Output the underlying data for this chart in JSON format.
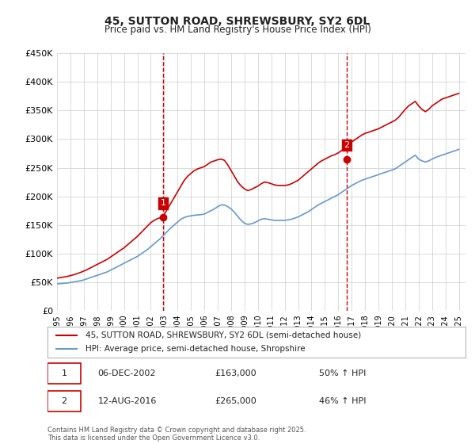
{
  "title1": "45, SUTTON ROAD, SHREWSBURY, SY2 6DL",
  "title2": "Price paid vs. HM Land Registry's House Price Index (HPI)",
  "ylabel": "",
  "ylim": [
    0,
    450000
  ],
  "yticks": [
    0,
    50000,
    100000,
    150000,
    200000,
    250000,
    300000,
    350000,
    400000,
    450000
  ],
  "ytick_labels": [
    "£0",
    "£50K",
    "£100K",
    "£150K",
    "£200K",
    "£250K",
    "£300K",
    "£350K",
    "£400K",
    "£450K"
  ],
  "xlim_start": 1995.0,
  "xlim_end": 2025.5,
  "background_color": "#ffffff",
  "grid_color": "#cccccc",
  "line1_color": "#cc0000",
  "line2_color": "#6699cc",
  "marker1_color": "#cc0000",
  "marker2_color": "#cc0000",
  "vline_color": "#cc0000",
  "vline_style": "--",
  "purchase1_x": 2002.92,
  "purchase1_y": 163000,
  "purchase1_label": "1",
  "purchase2_x": 2016.62,
  "purchase2_y": 265000,
  "purchase2_label": "2",
  "legend_line1": "45, SUTTON ROAD, SHREWSBURY, SY2 6DL (semi-detached house)",
  "legend_line2": "HPI: Average price, semi-detached house, Shropshire",
  "annotation1_date": "06-DEC-2002",
  "annotation1_price": "£163,000",
  "annotation1_hpi": "50% ↑ HPI",
  "annotation2_date": "12-AUG-2016",
  "annotation2_price": "£265,000",
  "annotation2_hpi": "46% ↑ HPI",
  "footer": "Contains HM Land Registry data © Crown copyright and database right 2025.\nThis data is licensed under the Open Government Licence v3.0.",
  "hpi_line": {
    "years": [
      1995,
      1995.25,
      1995.5,
      1995.75,
      1996,
      1996.25,
      1996.5,
      1996.75,
      1997,
      1997.25,
      1997.5,
      1997.75,
      1998,
      1998.25,
      1998.5,
      1998.75,
      1999,
      1999.25,
      1999.5,
      1999.75,
      2000,
      2000.25,
      2000.5,
      2000.75,
      2001,
      2001.25,
      2001.5,
      2001.75,
      2002,
      2002.25,
      2002.5,
      2002.75,
      2003,
      2003.25,
      2003.5,
      2003.75,
      2004,
      2004.25,
      2004.5,
      2004.75,
      2005,
      2005.25,
      2005.5,
      2005.75,
      2006,
      2006.25,
      2006.5,
      2006.75,
      2007,
      2007.25,
      2007.5,
      2007.75,
      2008,
      2008.25,
      2008.5,
      2008.75,
      2009,
      2009.25,
      2009.5,
      2009.75,
      2010,
      2010.25,
      2010.5,
      2010.75,
      2011,
      2011.25,
      2011.5,
      2011.75,
      2012,
      2012.25,
      2012.5,
      2012.75,
      2013,
      2013.25,
      2013.5,
      2013.75,
      2014,
      2014.25,
      2014.5,
      2014.75,
      2015,
      2015.25,
      2015.5,
      2015.75,
      2016,
      2016.25,
      2016.5,
      2016.75,
      2017,
      2017.25,
      2017.5,
      2017.75,
      2018,
      2018.25,
      2018.5,
      2018.75,
      2019,
      2019.25,
      2019.5,
      2019.75,
      2020,
      2020.25,
      2020.5,
      2020.75,
      2021,
      2021.25,
      2021.5,
      2021.75,
      2022,
      2022.25,
      2022.5,
      2022.75,
      2023,
      2023.25,
      2023.5,
      2023.75,
      2024,
      2024.25,
      2024.5,
      2024.75,
      2025
    ],
    "values": [
      47000,
      47500,
      48000,
      48500,
      49500,
      50500,
      51500,
      52500,
      54000,
      56000,
      58000,
      60000,
      62000,
      64000,
      66000,
      68000,
      71000,
      74000,
      77000,
      80000,
      83000,
      86000,
      89000,
      92000,
      95000,
      99000,
      103000,
      107000,
      112000,
      117000,
      122000,
      127000,
      133000,
      139000,
      145000,
      150000,
      155000,
      160000,
      163000,
      165000,
      166000,
      167000,
      167500,
      168000,
      169000,
      172000,
      175000,
      178000,
      182000,
      185000,
      185000,
      182000,
      178000,
      172000,
      165000,
      158000,
      153000,
      151000,
      152000,
      154000,
      157000,
      160000,
      161000,
      160000,
      159000,
      158000,
      158000,
      158000,
      158000,
      159000,
      160000,
      162000,
      164000,
      167000,
      170000,
      173000,
      177000,
      181000,
      185000,
      188000,
      191000,
      194000,
      197000,
      200000,
      203000,
      207000,
      211000,
      215000,
      219000,
      222000,
      225000,
      228000,
      230000,
      232000,
      234000,
      236000,
      238000,
      240000,
      242000,
      244000,
      246000,
      248000,
      252000,
      256000,
      260000,
      264000,
      268000,
      272000,
      265000,
      262000,
      260000,
      262000,
      265000,
      268000,
      270000,
      272000,
      274000,
      276000,
      278000,
      280000,
      282000
    ]
  },
  "price_line": {
    "years": [
      1995,
      1995.25,
      1995.5,
      1995.75,
      1996,
      1996.25,
      1996.5,
      1996.75,
      1997,
      1997.25,
      1997.5,
      1997.75,
      1998,
      1998.25,
      1998.5,
      1998.75,
      1999,
      1999.25,
      1999.5,
      1999.75,
      2000,
      2000.25,
      2000.5,
      2000.75,
      2001,
      2001.25,
      2001.5,
      2001.75,
      2002,
      2002.25,
      2002.5,
      2002.75,
      2003,
      2003.25,
      2003.5,
      2003.75,
      2004,
      2004.25,
      2004.5,
      2004.75,
      2005,
      2005.25,
      2005.5,
      2005.75,
      2006,
      2006.25,
      2006.5,
      2006.75,
      2007,
      2007.25,
      2007.5,
      2007.75,
      2008,
      2008.25,
      2008.5,
      2008.75,
      2009,
      2009.25,
      2009.5,
      2009.75,
      2010,
      2010.25,
      2010.5,
      2010.75,
      2011,
      2011.25,
      2011.5,
      2011.75,
      2012,
      2012.25,
      2012.5,
      2012.75,
      2013,
      2013.25,
      2013.5,
      2013.75,
      2014,
      2014.25,
      2014.5,
      2014.75,
      2015,
      2015.25,
      2015.5,
      2015.75,
      2016,
      2016.25,
      2016.5,
      2016.75,
      2017,
      2017.25,
      2017.5,
      2017.75,
      2018,
      2018.25,
      2018.5,
      2018.75,
      2019,
      2019.25,
      2019.5,
      2019.75,
      2020,
      2020.25,
      2020.5,
      2020.75,
      2021,
      2021.25,
      2021.5,
      2021.75,
      2022,
      2022.25,
      2022.5,
      2022.75,
      2023,
      2023.25,
      2023.5,
      2023.75,
      2024,
      2024.25,
      2024.5,
      2024.75,
      2025
    ],
    "values": [
      57000,
      58000,
      59000,
      60000,
      61500,
      63000,
      65000,
      67000,
      69500,
      72000,
      75000,
      78000,
      81000,
      84000,
      87000,
      90000,
      94000,
      98000,
      102000,
      106000,
      110000,
      115000,
      120000,
      125000,
      130000,
      136000,
      142000,
      148000,
      154000,
      158000,
      161000,
      163000,
      168000,
      178000,
      188000,
      198000,
      208000,
      218000,
      228000,
      235000,
      240000,
      245000,
      248000,
      250000,
      252000,
      256000,
      260000,
      262000,
      264000,
      265000,
      263000,
      255000,
      245000,
      235000,
      225000,
      218000,
      213000,
      210000,
      212000,
      215000,
      218000,
      222000,
      225000,
      224000,
      222000,
      220000,
      219000,
      219000,
      219000,
      220000,
      222000,
      225000,
      228000,
      233000,
      238000,
      243000,
      248000,
      253000,
      258000,
      262000,
      265000,
      268000,
      271000,
      273000,
      276000,
      280000,
      285000,
      290000,
      295000,
      299000,
      303000,
      307000,
      310000,
      312000,
      314000,
      316000,
      318000,
      321000,
      324000,
      327000,
      330000,
      333000,
      338000,
      345000,
      352000,
      358000,
      362000,
      366000,
      358000,
      352000,
      348000,
      352000,
      358000,
      362000,
      366000,
      370000,
      372000,
      374000,
      376000,
      378000,
      380000
    ]
  },
  "xtick_years": [
    1995,
    1996,
    1997,
    1998,
    1999,
    2000,
    2001,
    2002,
    2003,
    2004,
    2005,
    2006,
    2007,
    2008,
    2009,
    2010,
    2011,
    2012,
    2013,
    2014,
    2015,
    2016,
    2017,
    2018,
    2019,
    2020,
    2021,
    2022,
    2023,
    2024,
    2025
  ]
}
